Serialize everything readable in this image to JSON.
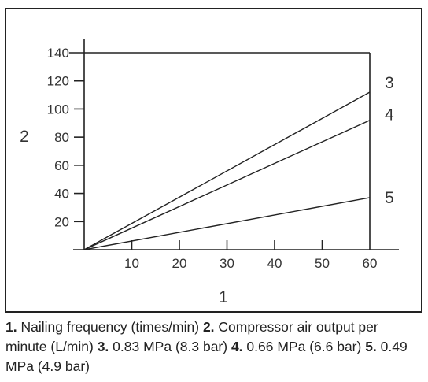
{
  "chart_data": {
    "type": "line",
    "xlabel": "1",
    "ylabel": "2",
    "xlim": [
      0,
      60
    ],
    "ylim": [
      0,
      140
    ],
    "x_ticks": [
      10,
      20,
      30,
      40,
      50,
      60
    ],
    "y_ticks": [
      20,
      40,
      60,
      80,
      100,
      120,
      140
    ],
    "grid": false,
    "series": [
      {
        "name": "3",
        "x": [
          0,
          60
        ],
        "y": [
          0,
          112
        ]
      },
      {
        "name": "4",
        "x": [
          0,
          60
        ],
        "y": [
          0,
          92
        ]
      },
      {
        "name": "5",
        "x": [
          0,
          60
        ],
        "y": [
          0,
          37
        ]
      }
    ]
  },
  "caption": [
    {
      "num": "1.",
      "text": " Nailing frequency (times/min) "
    },
    {
      "num": "2.",
      "text": " Compressor air output per minute (L/min) "
    },
    {
      "num": "3.",
      "text": " 0.83 MPa (8.3 bar) "
    },
    {
      "num": "4.",
      "text": " 0.66 MPa (6.6 bar) "
    },
    {
      "num": "5.",
      "text": " 0.49 MPa (4.9 bar)"
    }
  ]
}
